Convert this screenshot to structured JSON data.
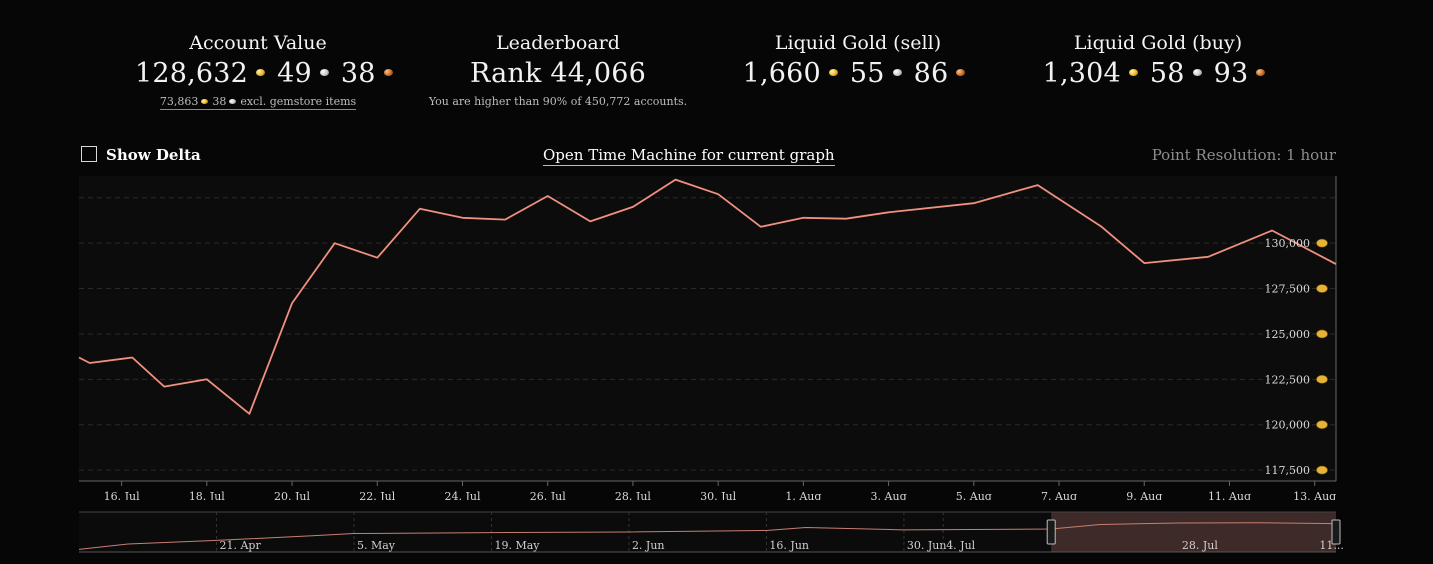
{
  "stats": {
    "account_value": {
      "title": "Account Value",
      "gold": "128,632",
      "silver": "49",
      "copper": "38",
      "sub_gold": "73,863",
      "sub_silver": "38",
      "sub_text": "excl. gemstore items"
    },
    "leaderboard": {
      "title": "Leaderboard",
      "rank": "Rank 44,066",
      "sub": "You are higher than 90% of 450,772 accounts."
    },
    "liquid_sell": {
      "title": "Liquid Gold (sell)",
      "gold": "1,660",
      "silver": "55",
      "copper": "86"
    },
    "liquid_buy": {
      "title": "Liquid Gold (buy)",
      "gold": "1,304",
      "silver": "58",
      "copper": "93"
    }
  },
  "toolbar": {
    "show_delta_label": "Show Delta",
    "show_delta_checked": false,
    "time_machine_label": "Open Time Machine for current graph",
    "resolution_label": "Point Resolution: 1 hour"
  },
  "colors": {
    "line": "#f0907e",
    "plot_bg": "#0d0c0d",
    "page_bg": "#060606"
  },
  "chart_data": {
    "type": "line",
    "title": "",
    "xlabel": "",
    "ylabel": "",
    "ylim": [
      116900,
      133700
    ],
    "xlim": [
      "2023-07-15T00:00",
      "2023-08-13T12:00"
    ],
    "y_ticks": [
      "117,500",
      "120,000",
      "122,500",
      "125,000",
      "127,500",
      "130,000"
    ],
    "y_tick_values": [
      117500,
      120000,
      122500,
      125000,
      127500,
      130000
    ],
    "y_tick_icon": "gold-coin-icon",
    "grid": true,
    "x_ticks": [
      "16. Jul",
      "18. Jul",
      "20. Jul",
      "22. Jul",
      "24. Jul",
      "26. Jul",
      "28. Jul",
      "30. Jul",
      "1. Aug",
      "3. Aug",
      "5. Aug",
      "7. Aug",
      "9. Aug",
      "11. Aug",
      "13. Aug"
    ],
    "x_tick_dates": [
      "2023-07-16",
      "2023-07-18",
      "2023-07-20",
      "2023-07-22",
      "2023-07-24",
      "2023-07-26",
      "2023-07-28",
      "2023-07-30",
      "2023-08-01",
      "2023-08-03",
      "2023-08-05",
      "2023-08-07",
      "2023-08-09",
      "2023-08-11",
      "2023-08-13"
    ],
    "series": [
      {
        "color": "#f0907e",
        "x": [
          "2023-07-15T00:00",
          "2023-07-15T06:00",
          "2023-07-16T06:00",
          "2023-07-17T00:00",
          "2023-07-18T00:00",
          "2023-07-19T00:00",
          "2023-07-20T00:00",
          "2023-07-21T00:00",
          "2023-07-22T00:00",
          "2023-07-23T00:00",
          "2023-07-24T00:00",
          "2023-07-25T00:00",
          "2023-07-26T00:00",
          "2023-07-27T00:00",
          "2023-07-28T00:00",
          "2023-07-29T00:00",
          "2023-07-30T00:00",
          "2023-07-31T00:00",
          "2023-08-01T00:00",
          "2023-08-02T00:00",
          "2023-08-03T00:00",
          "2023-08-05T00:00",
          "2023-08-06T12:00",
          "2023-08-08T00:00",
          "2023-08-09T00:00",
          "2023-08-10T12:00",
          "2023-08-12T00:00",
          "2023-08-13T12:00"
        ],
        "values": [
          123700,
          123400,
          123700,
          122100,
          122500,
          120600,
          126700,
          130000,
          129200,
          131900,
          131400,
          131300,
          132600,
          131200,
          132000,
          133500,
          132700,
          130900,
          131400,
          131350,
          131700,
          132200,
          133200,
          130900,
          128900,
          129250,
          130700,
          128850
        ]
      }
    ]
  },
  "navigator": {
    "labels": [
      "21. Apr",
      "5. May",
      "19. May",
      "2. Jun",
      "16. Jun",
      "30. Jun",
      "4. Jul",
      "28. Jul",
      "11..."
    ],
    "label_dates": [
      "2023-04-21",
      "2023-05-05",
      "2023-05-19",
      "2023-06-02",
      "2023-06-16",
      "2023-06-30",
      "2023-07-04",
      "2023-07-28",
      "2023-08-11"
    ],
    "range": [
      "2023-04-07",
      "2023-08-13"
    ],
    "selected": [
      "2023-07-15",
      "2023-08-13"
    ],
    "ylim": [
      40000,
      140000
    ],
    "series": {
      "x": [
        "2023-04-07",
        "2023-04-12",
        "2023-04-21",
        "2023-05-01",
        "2023-05-05",
        "2023-05-19",
        "2023-06-02",
        "2023-06-16",
        "2023-06-20",
        "2023-06-30",
        "2023-07-15",
        "2023-07-20",
        "2023-07-28",
        "2023-08-05",
        "2023-08-13"
      ],
      "values": [
        42000,
        60000,
        72000,
        88000,
        95000,
        98000,
        100000,
        105000,
        115000,
        107000,
        110000,
        125000,
        130000,
        131000,
        128000
      ]
    }
  }
}
